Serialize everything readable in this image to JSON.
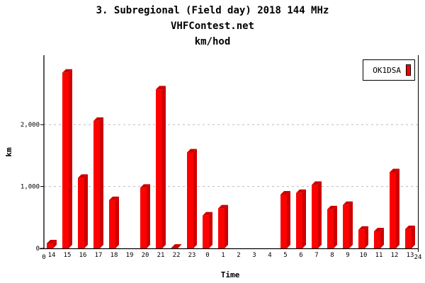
{
  "chart_data": {
    "type": "bar",
    "title": "3. Subregional (Field day) 2018 144 MHz",
    "subtitle": "VHFContest.net",
    "subtitle2": "km/hod",
    "xlabel": "Time",
    "ylabel": "km",
    "categories": [
      "14",
      "15",
      "16",
      "17",
      "18",
      "19",
      "20",
      "21",
      "22",
      "23",
      "0",
      "1",
      "2",
      "3",
      "4",
      "5",
      "6",
      "7",
      "8",
      "9",
      "10",
      "11",
      "12",
      "13"
    ],
    "x_end_labels": [
      "0",
      "24"
    ],
    "yticks": [
      0,
      1000,
      2000
    ],
    "ytick_labels": [
      "0",
      "1,000",
      "2,000"
    ],
    "ylim": [
      0,
      3100
    ],
    "grid": true,
    "legend_position": "top-right",
    "series": [
      {
        "name": "OK1DSA",
        "color": "#ff0000",
        "shade": "#cc0000",
        "values": [
          80,
          2840,
          1140,
          2060,
          780,
          0,
          980,
          2570,
          10,
          1550,
          530,
          645,
          0,
          0,
          0,
          870,
          895,
          1025,
          630,
          700,
          300,
          275,
          1230,
          310
        ]
      }
    ]
  }
}
